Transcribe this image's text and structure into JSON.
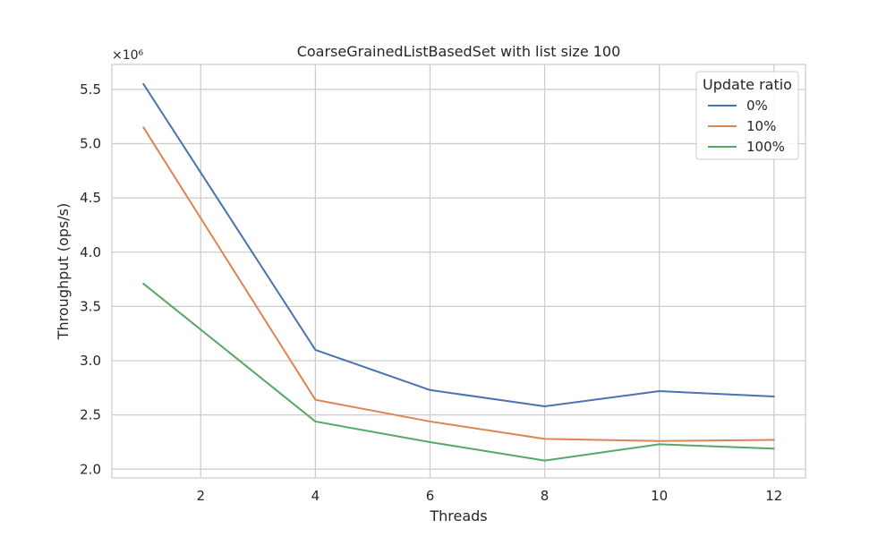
{
  "chart_data": {
    "type": "line",
    "title": "CoarseGrainedListBasedSet with list size 100",
    "xlabel": "Threads",
    "ylabel": "Throughput (ops/s)",
    "y_offset_label": "×10⁶",
    "x": [
      1,
      4,
      6,
      8,
      10,
      12
    ],
    "xlim": [
      0.45,
      12.55
    ],
    "ylim": [
      1.92,
      5.73
    ],
    "xticks": [
      2,
      4,
      6,
      8,
      10,
      12
    ],
    "xtick_labels": [
      "2",
      "4",
      "6",
      "8",
      "10",
      "12"
    ],
    "yticks": [
      2.0,
      2.5,
      3.0,
      3.5,
      4.0,
      4.5,
      5.0,
      5.5
    ],
    "ytick_labels": [
      "2.0",
      "2.5",
      "3.0",
      "3.5",
      "4.0",
      "4.5",
      "5.0",
      "5.5"
    ],
    "grid": true,
    "legend": {
      "title": "Update ratio",
      "placement": "top-right"
    },
    "series": [
      {
        "name": "0%",
        "color": "#4c72b0",
        "values": [
          5.55,
          3.1,
          2.73,
          2.58,
          2.72,
          2.67
        ]
      },
      {
        "name": "10%",
        "color": "#dd8452",
        "values": [
          5.15,
          2.64,
          2.44,
          2.28,
          2.26,
          2.27
        ]
      },
      {
        "name": "100%",
        "color": "#55a868",
        "values": [
          3.71,
          2.44,
          2.25,
          2.08,
          2.23,
          2.19
        ]
      }
    ]
  }
}
